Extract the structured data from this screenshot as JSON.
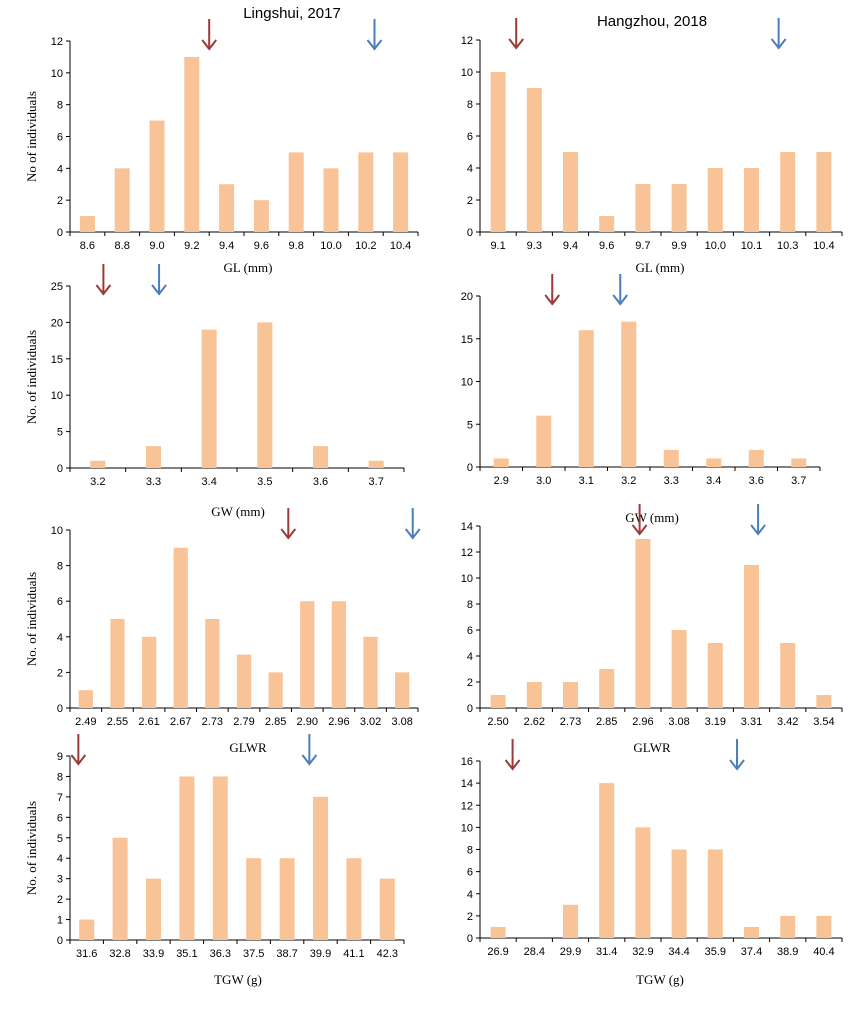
{
  "colors": {
    "bar": "#F8C396",
    "arrow_red": "#9B3A36",
    "arrow_blue": "#4A7EBB",
    "axis": "#000000"
  },
  "titles": {
    "left": "Lingshui, 2017",
    "right": "Hangzhou, 2018"
  },
  "chart_data": [
    {
      "type": "bar",
      "title": "",
      "xlabel": "GL (mm)",
      "ylabel": "No of  individuals",
      "categories": [
        "8.6",
        "8.8",
        "9.0",
        "9.2",
        "9.4",
        "9.6",
        "9.8",
        "10.0",
        "10.2",
        "10.4"
      ],
      "values": [
        1,
        4,
        7,
        11,
        3,
        2,
        5,
        4,
        5,
        5
      ],
      "ylim": [
        0,
        12
      ],
      "yticks": [
        0,
        2,
        4,
        6,
        8,
        10,
        12
      ],
      "arrows": {
        "red": 9.3,
        "blue": 10.25
      }
    },
    {
      "type": "bar",
      "title": "",
      "xlabel": "GL (mm)",
      "ylabel": "",
      "categories": [
        "9.1",
        "9.3",
        "9.4",
        "9.6",
        "9.7",
        "9.9",
        "10.0",
        "10.1",
        "10.3",
        "10.4"
      ],
      "values": [
        10,
        9,
        5,
        1,
        3,
        3,
        4,
        4,
        5,
        5
      ],
      "ylim": [
        0,
        12
      ],
      "yticks": [
        0,
        2,
        4,
        6,
        8,
        10,
        12
      ],
      "arrows": {
        "red": 9.2,
        "blue": 10.25
      }
    },
    {
      "type": "bar",
      "title": "",
      "xlabel": "GW (mm)",
      "ylabel": "No. of individuals",
      "categories": [
        "3.2",
        "3.3",
        "3.4",
        "3.5",
        "3.6",
        "3.7"
      ],
      "values": [
        1,
        3,
        19,
        20,
        3,
        1
      ],
      "ylim": [
        0,
        25
      ],
      "yticks": [
        0,
        5,
        10,
        15,
        20,
        25
      ],
      "arrows": {
        "red": 3.21,
        "blue": 3.31
      }
    },
    {
      "type": "bar",
      "title": "",
      "xlabel": "GW (mm)",
      "ylabel": "",
      "categories": [
        "2.9",
        "3.0",
        "3.1",
        "3.2",
        "3.3",
        "3.4",
        "3.6",
        "3.7"
      ],
      "values": [
        1,
        6,
        16,
        17,
        2,
        1,
        2,
        1
      ],
      "ylim": [
        0,
        20
      ],
      "yticks": [
        0,
        5,
        10,
        15,
        20
      ],
      "arrows": {
        "red": 3.02,
        "blue": 3.18
      }
    },
    {
      "type": "bar",
      "title": "",
      "xlabel": "GLWR",
      "ylabel": "No. of individuals",
      "categories": [
        "2.49",
        "2.55",
        "2.61",
        "2.67",
        "2.73",
        "2.79",
        "2.85",
        "2.90",
        "2.96",
        "3.02",
        "3.08"
      ],
      "values": [
        1,
        5,
        4,
        9,
        5,
        3,
        2,
        6,
        6,
        4,
        2
      ],
      "ylim": [
        0,
        10
      ],
      "yticks": [
        0,
        2,
        4,
        6,
        8,
        10
      ],
      "arrows": {
        "red": 2.87,
        "blue": 3.1
      }
    },
    {
      "type": "bar",
      "title": "",
      "xlabel": "GLWR",
      "ylabel": "",
      "categories": [
        "2.50",
        "2.62",
        "2.73",
        "2.85",
        "2.96",
        "3.08",
        "3.19",
        "3.31",
        "3.42",
        "3.54"
      ],
      "values": [
        1,
        2,
        2,
        3,
        13,
        6,
        5,
        11,
        5,
        1
      ],
      "ylim": [
        0,
        14
      ],
      "yticks": [
        0,
        2,
        4,
        6,
        8,
        10,
        12,
        14
      ],
      "arrows": {
        "red": 2.95,
        "blue": 3.33
      }
    },
    {
      "type": "bar",
      "title": "",
      "xlabel": "TGW (g)",
      "ylabel": "No. of individuals",
      "categories": [
        "31.6",
        "32.8",
        "33.9",
        "35.1",
        "36.3",
        "37.5",
        "38.7",
        "39.9",
        "41.1",
        "42.3"
      ],
      "values": [
        1,
        5,
        3,
        8,
        8,
        4,
        4,
        7,
        4,
        3
      ],
      "ylim": [
        0,
        9
      ],
      "yticks": [
        0,
        1,
        2,
        3,
        4,
        5,
        6,
        7,
        8,
        9
      ],
      "arrows": {
        "red": 31.3,
        "blue": 39.5
      }
    },
    {
      "type": "bar",
      "title": "",
      "xlabel": "TGW (g)",
      "ylabel": "",
      "categories": [
        "26.9",
        "28.4",
        "29.9",
        "31.4",
        "32.9",
        "34.4",
        "35.9",
        "37.4",
        "38.9",
        "40.4"
      ],
      "values": [
        1,
        0,
        3,
        14,
        10,
        8,
        8,
        1,
        2,
        2
      ],
      "ylim": [
        0,
        16
      ],
      "yticks": [
        0,
        2,
        4,
        6,
        8,
        10,
        12,
        14,
        16
      ],
      "arrows": {
        "red": 27.5,
        "blue": 36.8
      }
    }
  ]
}
